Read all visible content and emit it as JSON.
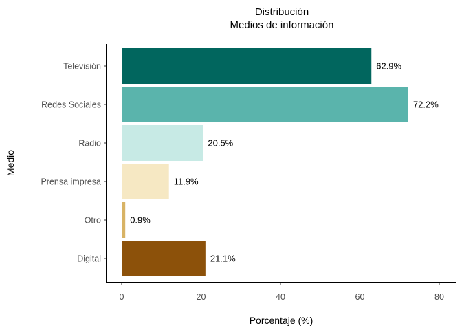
{
  "chart_data": {
    "type": "bar",
    "orientation": "horizontal",
    "title": "Distribución",
    "subtitle": "Medios de información",
    "xlabel": "Porcentaje (%)",
    "ylabel": "Medio",
    "categories": [
      "Televisión",
      "Redes Sociales",
      "Radio",
      "Prensa impresa",
      "Otro",
      "Digital"
    ],
    "values": [
      62.9,
      72.2,
      20.5,
      11.9,
      0.9,
      21.1
    ],
    "value_labels": [
      "62.9%",
      "72.2%",
      "20.5%",
      "11.9%",
      "0.9%",
      "21.1%"
    ],
    "colors": [
      "#01665e",
      "#5ab4ac",
      "#c7eae5",
      "#f6e8c3",
      "#d8b365",
      "#8c510a"
    ],
    "xlim": [
      0,
      80
    ],
    "xticks": [
      0,
      20,
      40,
      60,
      80
    ],
    "grid": false,
    "legend": "none"
  }
}
